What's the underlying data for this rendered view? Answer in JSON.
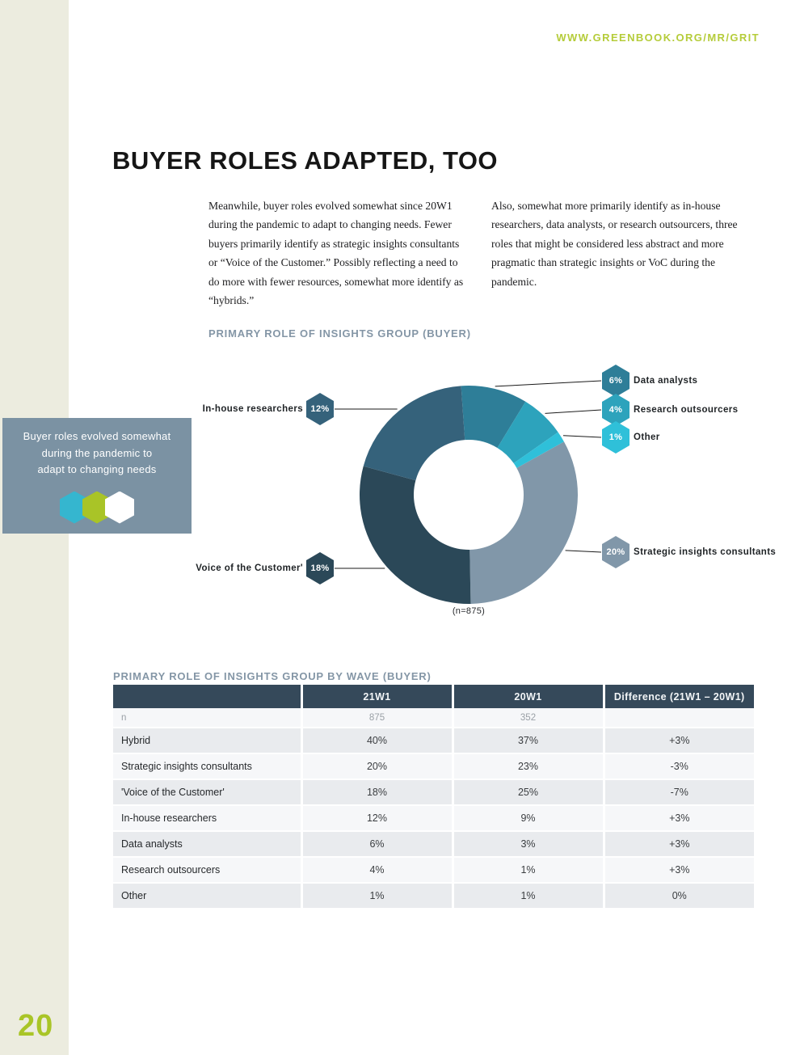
{
  "page": {
    "url": "WWW.GREENBOOK.ORG/MR/GRIT",
    "number": "20",
    "title": "BUYER ROLES ADAPTED, TOO"
  },
  "intro": {
    "left": "Meanwhile, buyer roles evolved somewhat since 20W1 during the pandemic to adapt to changing needs. Fewer buyers primarily identify as strategic insights consultants or “Voice of the Customer.” Possibly reflecting a need to do more with fewer resources, somewhat more identify as “hybrids.”",
    "right": "Also, somewhat more primarily identify as in-house researchers, data analysts, or research outsourcers, three roles that might be considered less abstract and more pragmatic than strategic insights or VoC during the pandemic."
  },
  "callout": {
    "lines": [
      "Buyer roles evolved somewhat",
      "during the pandemic to",
      "adapt to changing needs"
    ],
    "hex_colors": [
      "#35b6cf",
      "#a9c427",
      "#ffffff"
    ]
  },
  "chart_data": {
    "type": "pie",
    "title": "PRIMARY ROLE OF INSIGHTS GROUP (BUYER)",
    "sample_note": "(n=875)",
    "legend_position": "callout-hexagons",
    "segments": [
      {
        "label": "Data analysts",
        "value": 6,
        "display": "6%",
        "color": "#2e7e98"
      },
      {
        "label": "Research outsourcers",
        "value": 4,
        "display": "4%",
        "color": "#2da3bc"
      },
      {
        "label": "Other",
        "value": 1,
        "display": "1%",
        "color": "#2fc0d9"
      },
      {
        "label": "Strategic insights consultants",
        "value": 20,
        "display": "20%",
        "color": "#8197a9"
      },
      {
        "label": "Voice of the Customer'",
        "value": 18,
        "display": "18%",
        "color": "#2b4858"
      },
      {
        "label": "In-house researchers",
        "value": 12,
        "display": "12%",
        "color": "#35627b"
      }
    ]
  },
  "table": {
    "heading": "PRIMARY ROLE OF INSIGHTS GROUP BY WAVE (BUYER)",
    "columns": [
      "",
      "21W1",
      "20W1",
      "Difference (21W1 – 20W1)"
    ],
    "rows": [
      {
        "label": "n",
        "v21": "875",
        "v20": "352",
        "diff": ""
      },
      {
        "label": "Hybrid",
        "v21": "40%",
        "v20": "37%",
        "diff": "+3%"
      },
      {
        "label": "Strategic insights consultants",
        "v21": "20%",
        "v20": "23%",
        "diff": "-3%"
      },
      {
        "label": "'Voice of the Customer'",
        "v21": "18%",
        "v20": "25%",
        "diff": "-7%"
      },
      {
        "label": "In-house researchers",
        "v21": "12%",
        "v20": "9%",
        "diff": "+3%"
      },
      {
        "label": "Data analysts",
        "v21": "6%",
        "v20": "3%",
        "diff": "+3%"
      },
      {
        "label": "Research outsourcers",
        "v21": "4%",
        "v20": "1%",
        "diff": "+3%"
      },
      {
        "label": "Other",
        "v21": "1%",
        "v20": "1%",
        "diff": "0%"
      }
    ]
  },
  "colors": {
    "lime": "#a9c527",
    "heading_blue": "#8496a6",
    "table_header_bg": "#35495a",
    "row_dark": "#e9ebee",
    "row_light": "#f6f7f9",
    "callout_bg": "#7b92a3",
    "stripe": "#ececdf"
  }
}
